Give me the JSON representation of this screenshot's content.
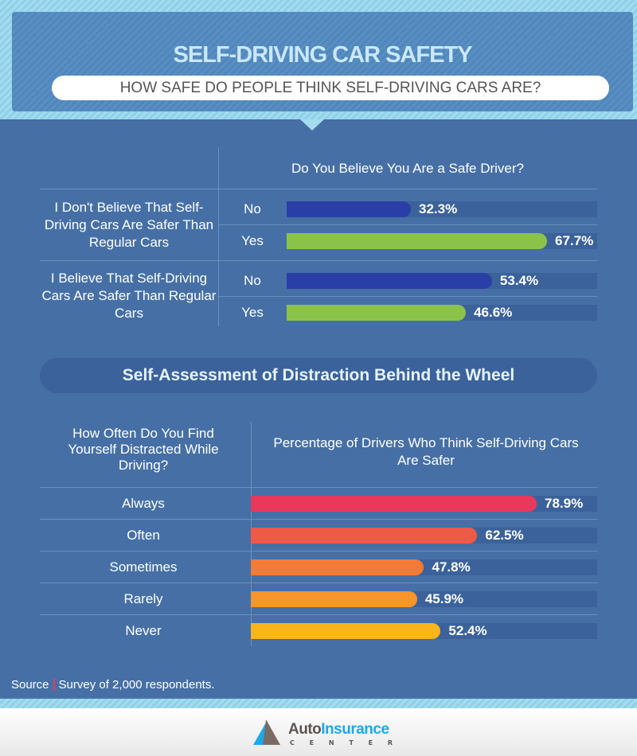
{
  "header": {
    "title": "SELF-DRIVING CAR SAFETY",
    "subtitle": "HOW SAFE DO PEOPLE THINK SELF-DRIVING CARS ARE?"
  },
  "chart_data": [
    {
      "type": "bar",
      "title": "Do You Believe You Are a Safe Driver?",
      "groups": [
        {
          "label": "I Don't Believe That Self-Driving Cars Are Safer Than Regular Cars",
          "rows": [
            {
              "category": "No",
              "value": 32.3,
              "label": "32.3%"
            },
            {
              "category": "Yes",
              "value": 67.7,
              "label": "67.7%"
            }
          ]
        },
        {
          "label": "I Believe That Self-Driving Cars Are Safer Than Regular Cars",
          "rows": [
            {
              "category": "No",
              "value": 53.4,
              "label": "53.4%"
            },
            {
              "category": "Yes",
              "value": 46.6,
              "label": "46.6%"
            }
          ]
        }
      ],
      "colors": {
        "No": "#2a3ea8",
        "Yes": "#8bc34a"
      }
    },
    {
      "type": "bar",
      "title": "Self-Assessment of Distraction Behind the Wheel",
      "row_header": "How Often Do You Find Yourself Distracted While Driving?",
      "col_header": "Percentage of Drivers Who Think Self-Driving Cars Are Safer",
      "categories": [
        "Always",
        "Often",
        "Sometimes",
        "Rarely",
        "Never"
      ],
      "values": [
        78.9,
        62.5,
        47.8,
        45.9,
        52.4
      ],
      "labels": [
        "78.9%",
        "62.5%",
        "47.8%",
        "45.9%",
        "52.4%"
      ],
      "colors": [
        "#e8395c",
        "#ef5a48",
        "#f47a38",
        "#f7952c",
        "#fbb41a"
      ]
    }
  ],
  "source": {
    "label": "Source",
    "text": "Survey of 2,000 respondents."
  },
  "logo": {
    "auto": "Auto",
    "insurance": "Insurance",
    "center": "C E N T E R"
  }
}
